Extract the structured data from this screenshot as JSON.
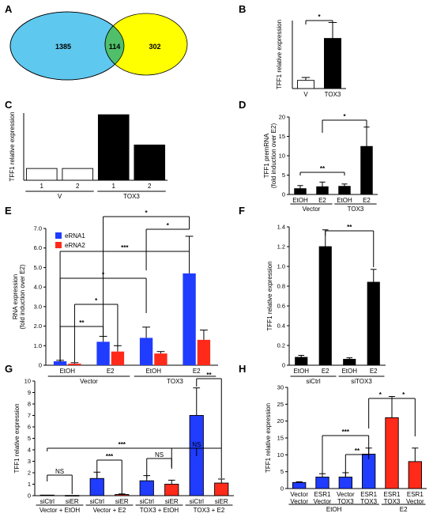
{
  "colors": {
    "black": "#000000",
    "white": "#ffffff",
    "blue": "#1f3cff",
    "red": "#ff2a1a",
    "venn_left": "#5ec8ef",
    "venn_right": "#ffff00",
    "venn_overlap": "#4fbf6a"
  },
  "chart_data": [
    {
      "panel": "A",
      "type": "venn",
      "sets": [
        {
          "value": "1385"
        },
        {
          "value": "114"
        },
        {
          "value": "302"
        }
      ]
    },
    {
      "panel": "B",
      "type": "bar",
      "ylabel": "TFF1 relative expression",
      "ylim": [
        0,
        3.5
      ],
      "categories": [
        "V",
        "TOX3"
      ],
      "values": [
        0.42,
        2.58
      ],
      "errors": [
        0.15,
        0.82
      ],
      "fills": [
        "white",
        "black"
      ],
      "annotations": [
        {
          "from": 0,
          "to": 1,
          "text": "*"
        }
      ]
    },
    {
      "panel": "C",
      "type": "bar",
      "ylabel": "TFF1 relative expression",
      "ylim": [
        0,
        4
      ],
      "categories": [
        "1",
        "2",
        "1",
        "2"
      ],
      "values": [
        0.7,
        0.7,
        3.9,
        2.1
      ],
      "fills": [
        "white",
        "white",
        "black",
        "black"
      ],
      "groups": [
        {
          "label": "V",
          "span": [
            0,
            1
          ]
        },
        {
          "label": "TOX3",
          "span": [
            2,
            3
          ]
        }
      ]
    },
    {
      "panel": "D",
      "type": "bar",
      "ylabel": "TFF1 premRNA",
      "ylabel2": "(fold induction over E2)",
      "ylim": [
        0,
        20
      ],
      "yticks": [
        "0",
        "5",
        "10",
        "15",
        "20"
      ],
      "categories": [
        "EtOH",
        "E2",
        "EtOH",
        "E2"
      ],
      "values": [
        1.5,
        2.0,
        2.1,
        12.4
      ],
      "errors": [
        0.8,
        1.2,
        0.6,
        5.0
      ],
      "fills": [
        "black",
        "black",
        "black",
        "black"
      ],
      "groups": [
        {
          "label": "Vector",
          "span": [
            0,
            1
          ]
        },
        {
          "label": "TOX3",
          "span": [
            2,
            3
          ]
        }
      ],
      "annotations": [
        {
          "from": 0,
          "to": 2,
          "text": "**"
        },
        {
          "from": 1,
          "to": 3,
          "text": "*"
        }
      ]
    },
    {
      "panel": "E",
      "type": "grouped-bar",
      "ylabel": "RNA expression",
      "ylabel2": "(fold induction over E2)",
      "ylim": [
        0,
        7
      ],
      "yticks": [
        "0",
        "1.0",
        "2.0",
        "3.0",
        "4.0",
        "5.0",
        "6.0",
        "7.0"
      ],
      "categories": [
        "EtOH",
        "E2",
        "EtOH",
        "E2"
      ],
      "series": [
        {
          "name": "eRNA1",
          "color": "blue",
          "values": [
            0.2,
            1.2,
            1.4,
            4.7
          ],
          "errors": [
            0.05,
            0.28,
            0.55,
            1.9
          ]
        },
        {
          "name": "eRNA2",
          "color": "red",
          "values": [
            0.08,
            0.7,
            0.6,
            1.3
          ],
          "errors": [
            0.05,
            0.3,
            0.1,
            0.5
          ]
        }
      ],
      "groups": [
        {
          "label": "Vector",
          "span": [
            0,
            1
          ]
        },
        {
          "label": "TOX3",
          "span": [
            2,
            3
          ]
        }
      ],
      "annotations": [
        {
          "from": [
            0,
            0
          ],
          "to": [
            1,
            0
          ],
          "text": "**"
        },
        {
          "from": [
            0,
            1
          ],
          "to": [
            1,
            1
          ],
          "text": "*"
        },
        {
          "from": [
            0,
            0
          ],
          "to": [
            2,
            0
          ],
          "text": "*"
        },
        {
          "from": [
            0,
            0
          ],
          "to": [
            3,
            0
          ],
          "text": "***"
        },
        {
          "from": [
            2,
            0
          ],
          "to": [
            3,
            0
          ],
          "text": "*"
        },
        {
          "from": [
            1,
            0
          ],
          "to": [
            3,
            0
          ],
          "text": "*"
        }
      ]
    },
    {
      "panel": "F",
      "type": "bar",
      "ylabel": "TFF1 relative expression",
      "ylim": [
        0,
        1.4
      ],
      "yticks": [
        "0",
        "0.2",
        "0.4",
        "0.6",
        "0.8",
        "1.0",
        "1.2",
        "1.4"
      ],
      "categories": [
        "EtOH",
        "E2",
        "EtOH",
        "E2"
      ],
      "values": [
        0.08,
        1.2,
        0.06,
        0.84
      ],
      "errors": [
        0.02,
        0.17,
        0.015,
        0.13
      ],
      "fills": [
        "black",
        "black",
        "black",
        "black"
      ],
      "groups": [
        {
          "label": "siCtrl",
          "span": [
            0,
            1
          ]
        },
        {
          "label": "siTOX3",
          "span": [
            2,
            3
          ]
        }
      ],
      "annotations": [
        {
          "from": 1,
          "to": 3,
          "text": "**"
        }
      ]
    },
    {
      "panel": "G",
      "type": "bar",
      "ylabel": "TFF1  relative expression",
      "ylim": [
        0,
        10
      ],
      "yticks": [
        "0",
        "1",
        "2",
        "3",
        "4",
        "5",
        "6",
        "7",
        "8",
        "9",
        "10"
      ],
      "categories": [
        "siCtrl",
        "siER",
        "siCtrl",
        "siER",
        "siCtrl",
        "siER",
        "siCtrl",
        "siER"
      ],
      "values": [
        0.05,
        0.02,
        1.5,
        0.1,
        1.3,
        1.0,
        7.0,
        1.1
      ],
      "errors": [
        0.0,
        0.0,
        0.55,
        0.05,
        0.45,
        0.35,
        2.4,
        0.35
      ],
      "fills": [
        "white",
        "white",
        "blue",
        "red",
        "blue",
        "red",
        "blue",
        "red"
      ],
      "groups": [
        {
          "label": "Vector + EtOH",
          "span": [
            0,
            1
          ]
        },
        {
          "label": "Vector + E2",
          "span": [
            2,
            3
          ]
        },
        {
          "label": "TOX3 + EtOH",
          "span": [
            4,
            5
          ]
        },
        {
          "label": "TOX3 + E2",
          "span": [
            6,
            7
          ]
        }
      ],
      "annotations": [
        {
          "from": 0,
          "to": 1,
          "text": "NS"
        },
        {
          "from": 2,
          "to": 3,
          "text": "***"
        },
        {
          "from": 0,
          "to": 6,
          "text": "***"
        },
        {
          "from": 4,
          "to": 5,
          "text": "NS"
        },
        {
          "from": 6,
          "to": 7,
          "text": "**"
        },
        {
          "from": 5,
          "to": 7,
          "text": "NS"
        }
      ]
    },
    {
      "panel": "H",
      "type": "bar",
      "ylabel": "TFF1  relative expression",
      "ylim": [
        0,
        30
      ],
      "yticks": [
        "0",
        "5",
        "10",
        "15",
        "20",
        "25",
        "30"
      ],
      "categories": [
        "Vector\nVector",
        "ESR1\nVector",
        "Vector\nTOX3",
        "ESR1\nTOX3",
        "ESR1\nTOX3",
        "ESR1\nVector"
      ],
      "values": [
        1.8,
        3.4,
        3.4,
        10.2,
        21.0,
        8.0
      ],
      "errors": [
        0.2,
        1.0,
        1.3,
        1.8,
        6.3,
        4.0
      ],
      "fills": [
        "blue",
        "blue",
        "blue",
        "blue",
        "red",
        "red"
      ],
      "groups": [
        {
          "label": "EtOH",
          "span": [
            0,
            3
          ]
        },
        {
          "label": "E2",
          "span": [
            4,
            5
          ]
        }
      ],
      "annotations": [
        {
          "from": 1,
          "to": 3,
          "text": "***"
        },
        {
          "from": 2,
          "to": 3,
          "text": "**"
        },
        {
          "from": 3,
          "to": 4,
          "text": "*"
        },
        {
          "from": 4,
          "to": 5,
          "text": "*"
        }
      ]
    }
  ]
}
